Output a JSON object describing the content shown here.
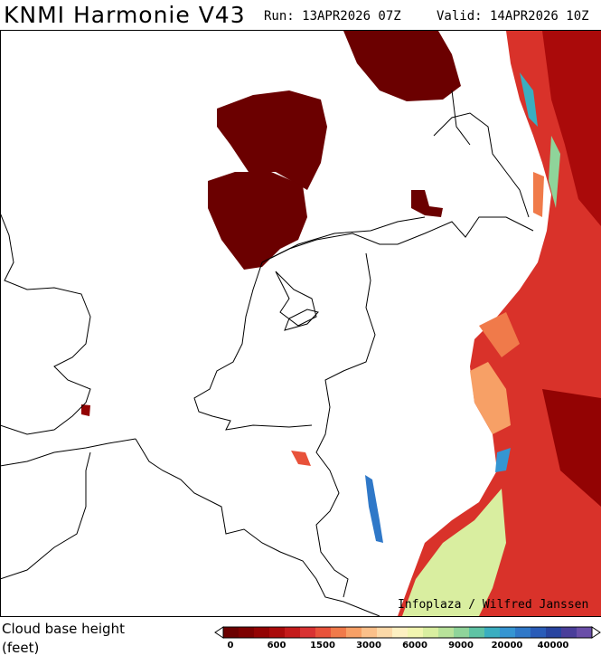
{
  "header": {
    "title": "KNMI Harmonie V43",
    "run": "Run: 13APR2026 07Z",
    "valid": "Valid: 14APR2026 10Z"
  },
  "map": {
    "credit": "Infoplaza / Wilfred Janssen"
  },
  "legend": {
    "title": "Cloud base height",
    "unit": "(feet)",
    "labels": [
      0,
      600,
      1500,
      3000,
      6000,
      9000,
      20000,
      40000
    ],
    "colors": [
      "#6b0000",
      "#7d0000",
      "#930303",
      "#aa0a0a",
      "#c41a1a",
      "#d93232",
      "#e8523a",
      "#f07a4a",
      "#f7a066",
      "#fbc08a",
      "#fcd9a8",
      "#fdf0c2",
      "#f2f5b0",
      "#d9eea0",
      "#b8e29a",
      "#8fd49a",
      "#5ec3a4",
      "#3aaec0",
      "#3595d2",
      "#2f78c8",
      "#2a5cb8",
      "#2844a0",
      "#4a3e9a",
      "#6a4ea8"
    ]
  }
}
